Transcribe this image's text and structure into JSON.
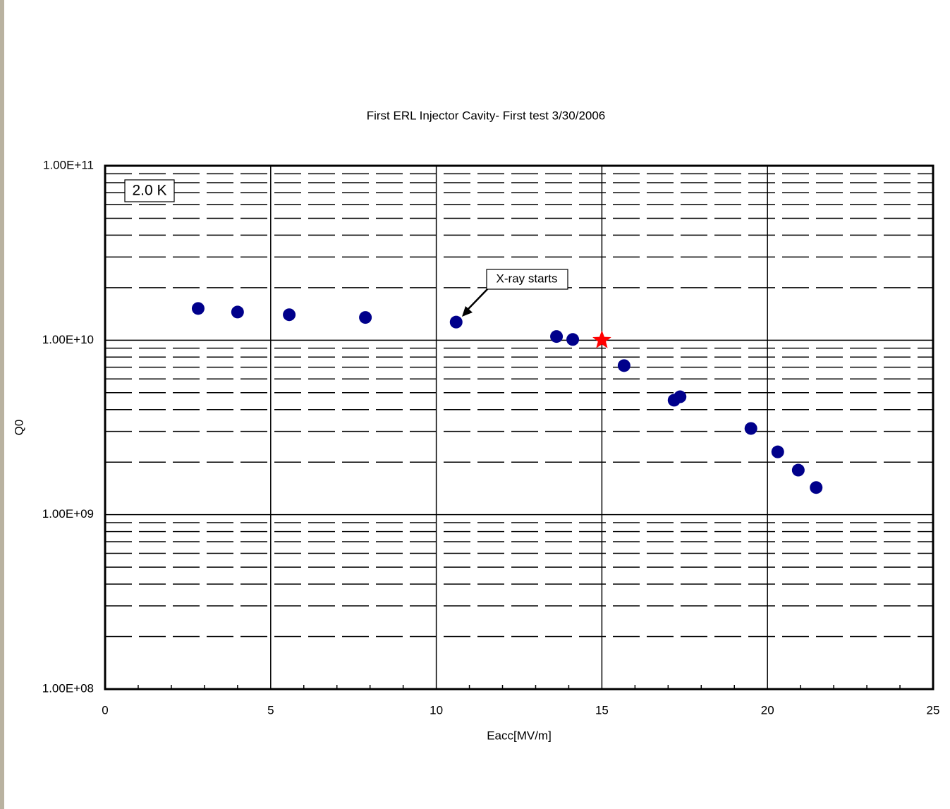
{
  "chart_data": {
    "type": "scatter",
    "title": "First ERL Injector Cavity- First test 3/30/2006",
    "x_label": "Eacc[MV/m]",
    "y_label": "Q0",
    "xlim": [
      0,
      25
    ],
    "xticks": [
      0,
      5,
      10,
      15,
      20,
      25
    ],
    "xminorticks": [
      1,
      2,
      3,
      4,
      6,
      7,
      8,
      9,
      11,
      12,
      13,
      14,
      16,
      17,
      18,
      19,
      21,
      22,
      23,
      24
    ],
    "ylim": [
      100000000,
      100000000000
    ],
    "y_scale": "log",
    "yticks": [
      {
        "value": 100000000,
        "label": "1.00E+08"
      },
      {
        "value": 1000000000,
        "label": "1.00E+09"
      },
      {
        "value": 10000000000,
        "label": "1.00E+10"
      },
      {
        "value": 100000000000,
        "label": "1.00E+11"
      }
    ],
    "yminorticks": [
      200000000,
      300000000,
      400000000,
      500000000,
      600000000,
      700000000,
      800000000,
      900000000,
      2000000000,
      3000000000,
      4000000000,
      5000000000,
      6000000000,
      7000000000,
      8000000000,
      9000000000,
      20000000000,
      30000000000,
      40000000000,
      50000000000,
      60000000000,
      70000000000,
      80000000000,
      90000000000
    ],
    "grid": true,
    "label_box": "2.0 K",
    "annotation": {
      "text": "X-ray starts"
    },
    "series": [
      {
        "color": "#00008b",
        "marker": "circle",
        "x": [
          2.81,
          4.0,
          5.56,
          7.86,
          10.6,
          13.63,
          14.12,
          15.67,
          17.18,
          17.36,
          19.5,
          20.31,
          20.93,
          21.47
        ],
        "values": [
          15200000000,
          14500000000,
          14000000000,
          13500000000,
          12700000000,
          10500000000,
          10100000000,
          7150000000,
          4530000000,
          4740000000,
          3120000000,
          2290000000,
          1800000000,
          1430000000
        ]
      },
      {
        "color": "#ff0000",
        "marker": "star",
        "x": [
          15.0
        ],
        "values": [
          10000000000
        ]
      }
    ]
  }
}
